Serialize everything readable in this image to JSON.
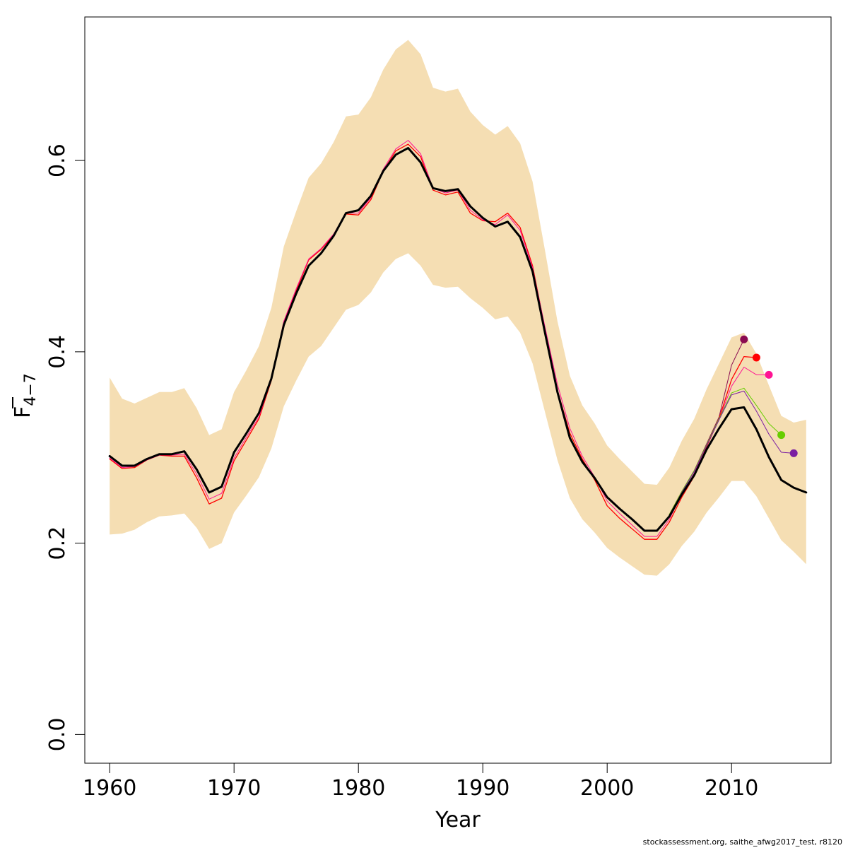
{
  "chart_data": {
    "type": "line",
    "xlabel": "Year",
    "ylabel": "F",
    "ylabel_subscript": "4−7",
    "xlim": [
      1958,
      2018
    ],
    "ylim": [
      -0.03,
      0.75
    ],
    "x_ticks": [
      1960,
      1970,
      1980,
      1990,
      2000,
      2010
    ],
    "y_ticks": [
      0.0,
      0.2,
      0.4,
      0.6
    ],
    "y_tick_labels": [
      "0.0",
      "0.2",
      "0.4",
      "0.6"
    ],
    "grid": false,
    "colors": {
      "band": "#F5DEB3",
      "main": "#000000"
    },
    "confidence_band": {
      "x": [
        1960,
        1961,
        1962,
        1963,
        1964,
        1965,
        1966,
        1967,
        1968,
        1969,
        1970,
        1971,
        1972,
        1973,
        1974,
        1975,
        1976,
        1977,
        1978,
        1979,
        1980,
        1981,
        1982,
        1983,
        1984,
        1985,
        1986,
        1987,
        1988,
        1989,
        1990,
        1991,
        1992,
        1993,
        1994,
        1995,
        1996,
        1997,
        1998,
        1999,
        2000,
        2001,
        2002,
        2003,
        2004,
        2005,
        2006,
        2007,
        2008,
        2009,
        2010,
        2011,
        2012,
        2013,
        2014,
        2015,
        2016
      ],
      "upper": [
        0.373,
        0.351,
        0.346,
        0.352,
        0.358,
        0.358,
        0.362,
        0.341,
        0.313,
        0.319,
        0.358,
        0.381,
        0.406,
        0.446,
        0.51,
        0.547,
        0.582,
        0.597,
        0.619,
        0.646,
        0.648,
        0.666,
        0.695,
        0.716,
        0.726,
        0.711,
        0.676,
        0.672,
        0.675,
        0.651,
        0.637,
        0.627,
        0.636,
        0.618,
        0.578,
        0.506,
        0.432,
        0.375,
        0.344,
        0.325,
        0.302,
        0.288,
        0.275,
        0.262,
        0.261,
        0.279,
        0.307,
        0.33,
        0.361,
        0.388,
        0.415,
        0.42,
        0.398,
        0.365,
        0.333,
        0.326,
        0.329
      ],
      "lower": [
        0.209,
        0.21,
        0.214,
        0.222,
        0.228,
        0.229,
        0.231,
        0.216,
        0.194,
        0.2,
        0.232,
        0.25,
        0.269,
        0.299,
        0.343,
        0.37,
        0.395,
        0.406,
        0.425,
        0.444,
        0.449,
        0.462,
        0.483,
        0.497,
        0.503,
        0.49,
        0.47,
        0.467,
        0.468,
        0.456,
        0.446,
        0.434,
        0.437,
        0.42,
        0.388,
        0.337,
        0.287,
        0.247,
        0.225,
        0.211,
        0.195,
        0.185,
        0.176,
        0.167,
        0.166,
        0.178,
        0.197,
        0.212,
        0.232,
        0.248,
        0.265,
        0.265,
        0.249,
        0.226,
        0.203,
        0.191,
        0.178
      ]
    },
    "series": [
      {
        "color": "#000000",
        "line_width": 3,
        "point": false,
        "x": [
          1960,
          1961,
          1962,
          1963,
          1964,
          1965,
          1966,
          1967,
          1968,
          1969,
          1970,
          1971,
          1972,
          1973,
          1974,
          1975,
          1976,
          1977,
          1978,
          1979,
          1980,
          1981,
          1982,
          1983,
          1984,
          1985,
          1986,
          1987,
          1988,
          1989,
          1990,
          1991,
          1992,
          1993,
          1994,
          1995,
          1996,
          1997,
          1998,
          1999,
          2000,
          2001,
          2002,
          2003,
          2004,
          2005,
          2006,
          2007,
          2008,
          2009,
          2010,
          2011,
          2012,
          2013,
          2014,
          2015,
          2016
        ],
        "y": [
          0.291,
          0.281,
          0.281,
          0.288,
          0.293,
          0.293,
          0.296,
          0.277,
          0.253,
          0.259,
          0.295,
          0.315,
          0.336,
          0.372,
          0.428,
          0.461,
          0.49,
          0.503,
          0.521,
          0.545,
          0.548,
          0.563,
          0.589,
          0.606,
          0.613,
          0.598,
          0.571,
          0.568,
          0.57,
          0.552,
          0.54,
          0.531,
          0.536,
          0.52,
          0.484,
          0.42,
          0.358,
          0.31,
          0.285,
          0.268,
          0.248,
          0.236,
          0.225,
          0.213,
          0.213,
          0.228,
          0.251,
          0.271,
          0.298,
          0.32,
          0.34,
          0.342,
          0.319,
          0.29,
          0.266,
          0.258,
          0.253
        ]
      },
      {
        "color": "#8B0A50",
        "line_width": 1,
        "point": true,
        "x": [
          2005,
          2006,
          2007,
          2008,
          2009,
          2010,
          2011
        ],
        "y": [
          0.23,
          0.254,
          0.276,
          0.304,
          0.332,
          0.386,
          0.413
        ]
      },
      {
        "color": "#FF0000",
        "line_width": 1.3,
        "point": true,
        "x": [
          1960,
          1961,
          1962,
          1963,
          1964,
          1965,
          1966,
          1967,
          1968,
          1969,
          1970,
          1971,
          1972,
          1973,
          1974,
          1975,
          1976,
          1977,
          1978,
          1979,
          1980,
          1981,
          1982,
          1983,
          1984,
          1985,
          1986,
          1987,
          1988,
          1989,
          1990,
          1991,
          1992,
          1993,
          1994,
          1995,
          1996,
          1997,
          1998,
          1999,
          2000,
          2001,
          2002,
          2003,
          2004,
          2005,
          2006,
          2007,
          2008,
          2009,
          2010,
          2011,
          2012
        ],
        "y": [
          0.288,
          0.278,
          0.279,
          0.287,
          0.292,
          0.291,
          0.291,
          0.268,
          0.241,
          0.247,
          0.286,
          0.308,
          0.33,
          0.37,
          0.431,
          0.464,
          0.496,
          0.507,
          0.522,
          0.544,
          0.543,
          0.559,
          0.589,
          0.61,
          0.617,
          0.604,
          0.569,
          0.564,
          0.567,
          0.545,
          0.537,
          0.536,
          0.545,
          0.53,
          0.49,
          0.424,
          0.36,
          0.315,
          0.288,
          0.266,
          0.239,
          0.226,
          0.215,
          0.204,
          0.204,
          0.222,
          0.248,
          0.27,
          0.301,
          0.33,
          0.371,
          0.395,
          0.394
        ]
      },
      {
        "color": "#FF1493",
        "line_width": 1,
        "point": true,
        "x": [
          1960,
          1961,
          1962,
          1963,
          1964,
          1965,
          1966,
          1967,
          1968,
          1969,
          1970,
          1971,
          1972,
          1973,
          1974,
          1975,
          1976,
          1977,
          1978,
          1979,
          1980,
          1981,
          1982,
          1983,
          1984,
          1985,
          1986,
          1987,
          1988,
          1989,
          1990,
          1991,
          1992,
          1993,
          1994,
          1995,
          1996,
          1997,
          1998,
          1999,
          2000,
          2001,
          2002,
          2003,
          2004,
          2005,
          2006,
          2007,
          2008,
          2009,
          2010,
          2011,
          2012,
          2013
        ],
        "y": [
          0.289,
          0.279,
          0.28,
          0.287,
          0.292,
          0.292,
          0.293,
          0.272,
          0.246,
          0.252,
          0.289,
          0.311,
          0.332,
          0.371,
          0.432,
          0.466,
          0.497,
          0.508,
          0.523,
          0.545,
          0.545,
          0.561,
          0.591,
          0.612,
          0.621,
          0.607,
          0.571,
          0.566,
          0.569,
          0.548,
          0.538,
          0.533,
          0.543,
          0.527,
          0.488,
          0.426,
          0.366,
          0.32,
          0.291,
          0.269,
          0.244,
          0.231,
          0.219,
          0.207,
          0.207,
          0.225,
          0.251,
          0.273,
          0.303,
          0.329,
          0.364,
          0.384,
          0.376,
          0.376
        ]
      },
      {
        "color": "#66CD00",
        "line_width": 1,
        "point": true,
        "x": [
          2005,
          2006,
          2007,
          2008,
          2009,
          2010,
          2011,
          2012,
          2013,
          2014
        ],
        "y": [
          0.23,
          0.254,
          0.276,
          0.303,
          0.33,
          0.357,
          0.362,
          0.344,
          0.325,
          0.313
        ]
      },
      {
        "color": "#7B1FA2",
        "line_width": 1,
        "point": true,
        "x": [
          2005,
          2006,
          2007,
          2008,
          2009,
          2010,
          2011,
          2012,
          2013,
          2014,
          2015
        ],
        "y": [
          0.229,
          0.253,
          0.275,
          0.302,
          0.329,
          0.355,
          0.359,
          0.338,
          0.314,
          0.295,
          0.294
        ]
      }
    ]
  },
  "footer": {
    "text": "stockassessment.org, saithe_afwg2017_test, r8120"
  }
}
